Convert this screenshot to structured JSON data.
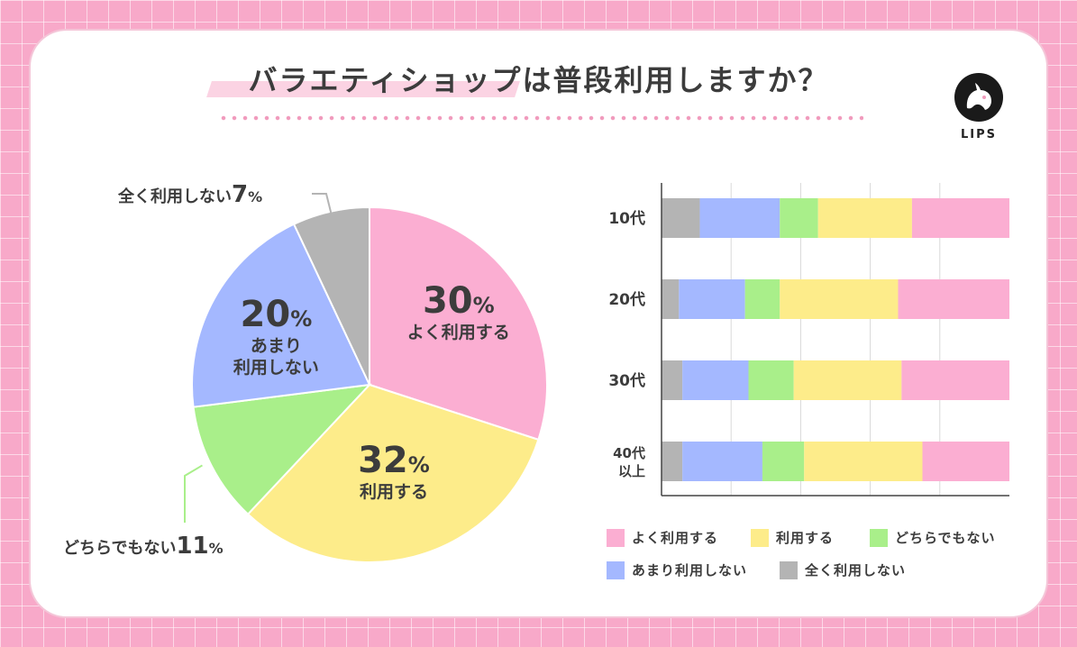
{
  "title": "バラエティショップは普段利用しますか？",
  "logo": {
    "text": "LIPS",
    "icon": "deer-head-icon",
    "color": "#1a1a1a",
    "accent": "#f19bbd"
  },
  "colors": {
    "page_bg": "#f8a9c9",
    "よく利用する": "#fbaed2",
    "利用する": "#fdec8a",
    "どちらでもない": "#a9ef8a",
    "あまり利用しない": "#a4b8ff",
    "全く利用しない": "#b4b4b4"
  },
  "legend": [
    "よく利用する",
    "利用する",
    "どちらでもない",
    "あまり利用しない",
    "全く利用しない"
  ],
  "chart_data": [
    {
      "type": "pie",
      "slices": [
        {
          "name": "よく利用する",
          "value": 30,
          "pct": "30",
          "label": "よく利用する"
        },
        {
          "name": "利用する",
          "value": 32,
          "pct": "32",
          "label": "利用する"
        },
        {
          "name": "どちらでもない",
          "value": 11,
          "pct": "11",
          "label": "どちらでもない"
        },
        {
          "name": "あまり利用しない",
          "value": 20,
          "pct": "20",
          "label": "あまり\n利用しない"
        },
        {
          "name": "全く利用しない",
          "value": 7,
          "pct": "7",
          "label": "全く利用しない"
        }
      ],
      "percent_sign": "%"
    },
    {
      "type": "bar",
      "orientation": "horizontal",
      "stacked": true,
      "categories": [
        "10代",
        "20代",
        "30代",
        "40代\n以上"
      ],
      "series": [
        {
          "name": "全く利用しない",
          "values": [
            11,
            5,
            6,
            6
          ]
        },
        {
          "name": "あまり利用しない",
          "values": [
            23,
            19,
            19,
            23
          ]
        },
        {
          "name": "どちらでもない",
          "values": [
            11,
            10,
            13,
            12
          ]
        },
        {
          "name": "利用する",
          "values": [
            27,
            34,
            31,
            34
          ]
        },
        {
          "name": "よく利用する",
          "values": [
            28,
            32,
            31,
            25
          ]
        }
      ],
      "xlim": [
        0,
        100
      ],
      "grid": true
    }
  ]
}
